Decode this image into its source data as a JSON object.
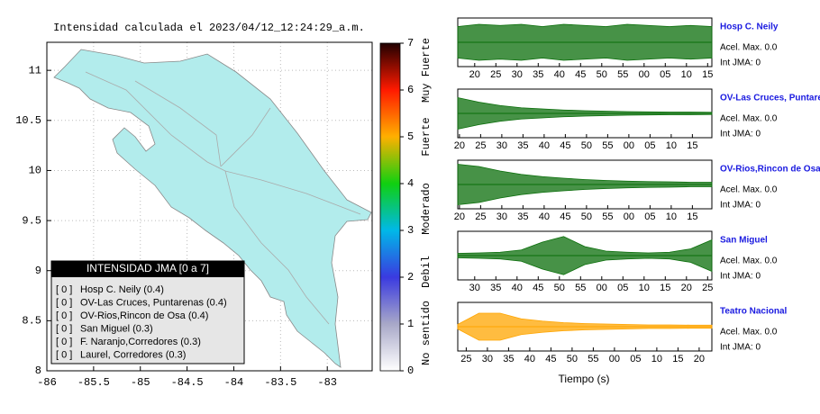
{
  "map": {
    "title": "Intensidad calculada el 2023/04/12_12:24:29_a.m.",
    "xlim": [
      -86,
      -82.52
    ],
    "ylim": [
      8,
      11.28
    ],
    "xticks": [
      -86,
      -85.5,
      -85,
      -84.5,
      -84,
      -83.5,
      -83
    ],
    "yticks": [
      8,
      8.5,
      9,
      9.5,
      10,
      10.5,
      11
    ],
    "grid": true
  },
  "colorbar": {
    "lim": [
      0,
      7
    ],
    "ticks": [
      0,
      1,
      2,
      3,
      4,
      5,
      6,
      7
    ],
    "colors": [
      "#ffffff",
      "#a8a8c8",
      "#3a3ae0",
      "#00b8e8",
      "#10d010",
      "#ffb000",
      "#ff1a00",
      "#200000"
    ],
    "labels": [
      "No sentido",
      "Debil",
      "Moderado",
      "Fuerte",
      "Muy Fuerte"
    ]
  },
  "legend": {
    "title": "INTENSIDAD JMA [0 a 7]",
    "items": [
      {
        "level": "[ 0 ]",
        "label": "Hosp C. Neily (0.4)"
      },
      {
        "level": "[ 0 ]",
        "label": "OV-Las Cruces, Puntarenas (0.4)"
      },
      {
        "level": "[ 0 ]",
        "label": "OV-Rios,Rincon de Osa (0.4)"
      },
      {
        "level": "[ 0 ]",
        "label": "San Miguel (0.3)"
      },
      {
        "level": "[ 0 ]",
        "label": "F. Naranjo,Corredores (0.3)"
      },
      {
        "level": "[ 0 ]",
        "label": "Laurel, Corredores (0.3)"
      }
    ]
  },
  "waveforms": {
    "xlabel": "Tiempo (s)",
    "panels": [
      {
        "name": "Hosp C. Neily",
        "accel": "Acel. Max. 0.0",
        "int": "Int JMA: 0",
        "color": "#0a6e0a",
        "xlim": [
          16,
          76
        ],
        "xticks": [
          20,
          25,
          30,
          35,
          40,
          45,
          50,
          55,
          {
            "value": 60,
            "label": "00"
          },
          {
            "value": 65,
            "label": "05"
          },
          {
            "value": 70,
            "label": "10"
          },
          {
            "value": 75,
            "label": "15"
          }
        ],
        "t": [
          16,
          21,
          26,
          31,
          36,
          41,
          46,
          51,
          56,
          61,
          66,
          71,
          76
        ],
        "amp": [
          0.7,
          0.8,
          0.75,
          0.8,
          0.7,
          0.8,
          0.75,
          0.7,
          0.8,
          0.75,
          0.7,
          0.75,
          0.7
        ]
      },
      {
        "name": "OV-Las Cruces, Puntarenas",
        "accel": "Acel. Max. 0.0",
        "int": "Int JMA: 0",
        "color": "#0a6e0a",
        "xlim": [
          19.6,
          79.6
        ],
        "xticks": [
          20,
          25,
          30,
          35,
          40,
          45,
          50,
          55,
          {
            "value": 60,
            "label": "00"
          },
          {
            "value": 65,
            "label": "05"
          },
          {
            "value": 70,
            "label": "10"
          },
          {
            "value": 75,
            "label": "15"
          }
        ],
        "t": [
          19.6,
          24.6,
          29.6,
          34.6,
          39.6,
          44.6,
          49.6,
          54.6,
          59.6,
          64.6,
          69.6,
          74.6,
          79.6
        ],
        "amp": [
          0.7,
          0.5,
          0.35,
          0.25,
          0.2,
          0.15,
          0.12,
          0.1,
          0.08,
          0.07,
          0.06,
          0.06,
          0.05
        ]
      },
      {
        "name": "OV-Rios,Rincon de Osa",
        "accel": "Acel. Max. 0.0",
        "int": "Int JMA: 0",
        "color": "#0a6e0a",
        "xlim": [
          19.6,
          79.6
        ],
        "xticks": [
          20,
          25,
          30,
          35,
          40,
          45,
          50,
          55,
          {
            "value": 60,
            "label": "00"
          },
          {
            "value": 65,
            "label": "05"
          },
          {
            "value": 70,
            "label": "10"
          },
          {
            "value": 75,
            "label": "15"
          }
        ],
        "t": [
          19.6,
          24.6,
          29.6,
          34.6,
          39.6,
          44.6,
          49.6,
          54.6,
          59.6,
          64.6,
          69.6,
          74.6,
          79.6
        ],
        "amp": [
          0.9,
          0.8,
          0.6,
          0.45,
          0.35,
          0.28,
          0.22,
          0.18,
          0.15,
          0.13,
          0.12,
          0.1,
          0.1
        ]
      },
      {
        "name": "San Miguel",
        "accel": "Acel. Max. 0.0",
        "int": "Int JMA: 0",
        "color": "#0a6e0a",
        "xlim": [
          26,
          86
        ],
        "xticks": [
          30,
          35,
          40,
          45,
          50,
          55,
          {
            "value": 60,
            "label": "00"
          },
          {
            "value": 65,
            "label": "05"
          },
          {
            "value": 70,
            "label": "10"
          },
          {
            "value": 75,
            "label": "15"
          },
          {
            "value": 80,
            "label": "20"
          },
          {
            "value": 85,
            "label": "25"
          }
        ],
        "t": [
          26,
          31,
          36,
          41,
          46,
          51,
          56,
          61,
          66,
          71,
          76,
          81,
          86
        ],
        "amp": [
          0.1,
          0.12,
          0.15,
          0.25,
          0.6,
          0.85,
          0.4,
          0.2,
          0.15,
          0.12,
          0.15,
          0.3,
          0.7
        ]
      },
      {
        "name": "Teatro Nacional",
        "accel": "Acel. Max. 0.0",
        "int": "Int JMA: 0",
        "color": "#ffa500",
        "xlim": [
          23,
          83
        ],
        "xticks": [
          25,
          30,
          35,
          40,
          45,
          50,
          55,
          {
            "value": 60,
            "label": "00"
          },
          {
            "value": 65,
            "label": "05"
          },
          {
            "value": 70,
            "label": "10"
          },
          {
            "value": 75,
            "label": "15"
          },
          {
            "value": 80,
            "label": "20"
          }
        ],
        "t": [
          23,
          28,
          33,
          38,
          43,
          48,
          53,
          58,
          63,
          68,
          73,
          78,
          83
        ],
        "amp": [
          0.1,
          0.6,
          0.6,
          0.35,
          0.25,
          0.18,
          0.14,
          0.12,
          0.1,
          0.08,
          0.08,
          0.07,
          0.07
        ]
      }
    ]
  }
}
